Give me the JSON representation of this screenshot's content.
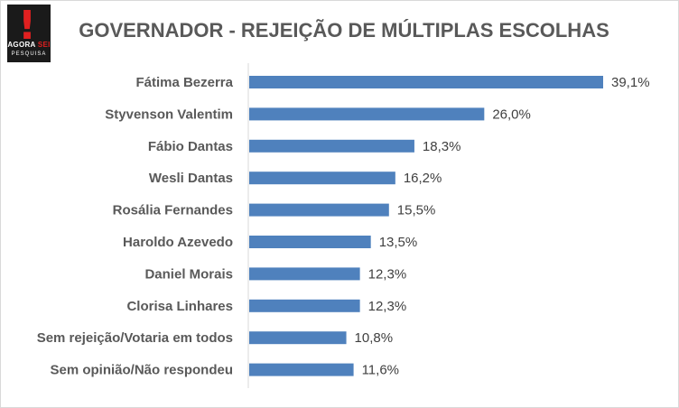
{
  "logo": {
    "mark": "!",
    "word_main": "AGORA",
    "word_accent": "SEI",
    "tagline": "PESQUISA"
  },
  "chart_data": {
    "type": "bar",
    "orientation": "horizontal",
    "title": "GOVERNADOR - REJEIÇÃO DE MÚLTIPLAS ESCOLHAS",
    "xlabel": "",
    "ylabel": "",
    "categories": [
      "Fátima Bezerra",
      "Styvenson Valentim",
      "Fábio Dantas",
      "Wesli Dantas",
      "Rosália Fernandes",
      "Haroldo Azevedo",
      "Daniel Morais",
      "Clorisa Linhares",
      "Sem rejeição/Votaria em todos",
      "Sem opinião/Não respondeu"
    ],
    "values": [
      39.1,
      26.0,
      18.3,
      16.2,
      15.5,
      13.5,
      12.3,
      12.3,
      10.8,
      11.6
    ],
    "value_labels": [
      "39,1%",
      "26,0%",
      "18,3%",
      "16,2%",
      "15,5%",
      "13,5%",
      "12,3%",
      "12,3%",
      "10,8%",
      "11,6%"
    ],
    "xlim": [
      0,
      39.1
    ],
    "grid": false,
    "legend": "none",
    "bar_color": "#4f81bd"
  }
}
